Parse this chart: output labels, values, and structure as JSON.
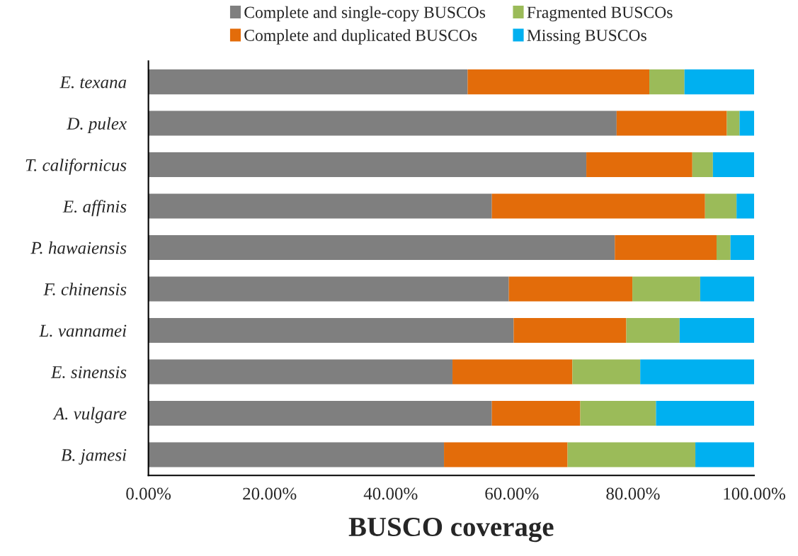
{
  "chart_data": {
    "type": "bar",
    "orientation": "horizontal",
    "stacked": true,
    "xlabel": "BUSCO coverage",
    "categories": [
      "E. texana",
      "D. pulex",
      "T. californicus",
      "E. affinis",
      "P. hawaiensis",
      "F. chinensis",
      "L. vannamei",
      "E. sinensis",
      "A. vulgare",
      "B. jamesi"
    ],
    "series": [
      {
        "name": "Complete and single-copy BUSCOs",
        "color": "#7f7f7f",
        "values": [
          52.7,
          77.3,
          72.3,
          56.7,
          77.0,
          59.5,
          60.3,
          50.2,
          56.7,
          48.8
        ]
      },
      {
        "name": "Complete and duplicated BUSCOs",
        "color": "#e36c0a",
        "values": [
          30.0,
          18.2,
          17.5,
          35.2,
          16.8,
          20.4,
          18.6,
          19.8,
          14.6,
          20.4
        ]
      },
      {
        "name": "Fragmented BUSCOs",
        "color": "#9bbb59",
        "values": [
          5.8,
          2.1,
          3.4,
          5.2,
          2.3,
          11.2,
          8.8,
          11.2,
          12.5,
          21.1
        ]
      },
      {
        "name": "Missing BUSCOs",
        "color": "#00b0f0",
        "values": [
          11.5,
          2.4,
          6.8,
          2.9,
          3.9,
          8.9,
          12.3,
          18.8,
          16.2,
          9.7
        ]
      }
    ],
    "xlim": [
      0,
      100
    ],
    "xticks": [
      {
        "value": 0,
        "label": "0.00%"
      },
      {
        "value": 20,
        "label": "20.00%"
      },
      {
        "value": 40,
        "label": "40.00%"
      },
      {
        "value": 60,
        "label": "60.00%"
      },
      {
        "value": 80,
        "label": "80.00%"
      },
      {
        "value": 100,
        "label": "100.00%"
      }
    ],
    "grid": false,
    "legend": "top"
  }
}
